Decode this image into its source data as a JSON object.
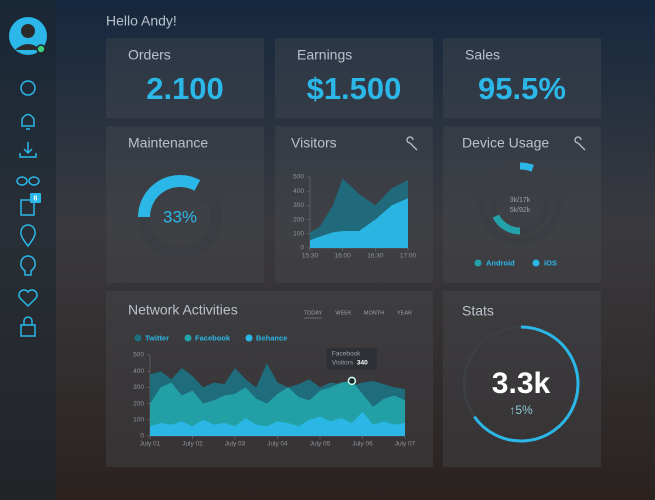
{
  "greeting": "Hello Andy!",
  "sidebar": {
    "badge": "8"
  },
  "cards": [
    {
      "title": "Orders",
      "value": "2.100"
    },
    {
      "title": "Earnings",
      "value": "$1.500"
    },
    {
      "title": "Sales",
      "value": "95.5%"
    }
  ],
  "stats": {
    "title": "Stats",
    "value": "3.3k",
    "change": "↑5%"
  },
  "chart_data": [
    {
      "type": "gauge",
      "title": "Maintenance",
      "value": 33,
      "value_label": "33%",
      "ylim": [
        0,
        100
      ],
      "color": "#2bb8e8"
    },
    {
      "type": "area",
      "title": "Visitors",
      "x": [
        15.5,
        15.65,
        15.85,
        16.0,
        16.25,
        16.5,
        16.75,
        17.0
      ],
      "series": [
        {
          "name": "Visitors",
          "color": "#1f6d80",
          "values": [
            110,
            150,
            300,
            490,
            380,
            300,
            420,
            480
          ]
        },
        {
          "name": "Visitors",
          "color": "#2bb8e8",
          "values": [
            55,
            80,
            110,
            120,
            120,
            200,
            300,
            350
          ]
        }
      ],
      "xlim": [
        15.5,
        17.0
      ],
      "xticks": [
        {
          "value": 15.5,
          "label": "15:30"
        },
        {
          "value": 16.0,
          "label": "16:00"
        },
        {
          "value": 16.5,
          "label": "16:30"
        },
        {
          "value": 17.0,
          "label": "17:00"
        }
      ],
      "ylim": [
        0,
        500
      ],
      "yticks": [
        0,
        100,
        200,
        300,
        400,
        500
      ]
    },
    {
      "type": "donut",
      "title": "Device Usage",
      "series": [
        {
          "name": "Android",
          "color": "#23a3a9",
          "value": 3,
          "total": 17,
          "value_label": "3k/17k"
        },
        {
          "name": "iOS",
          "color": "#2bb8e8",
          "value": 5,
          "total": 92,
          "value_label": "5k/92k"
        }
      ]
    },
    {
      "type": "area",
      "title": "Network Activities",
      "legend": "top-left",
      "tabs": [
        "TODAY",
        "WEEK",
        "MONTH",
        "YEAR"
      ],
      "x": [
        1,
        1.25,
        1.5,
        1.75,
        2,
        2.25,
        2.5,
        2.75,
        3,
        3.25,
        3.5,
        3.75,
        4,
        4.25,
        4.5,
        4.75,
        5,
        5.25,
        5.5,
        5.75,
        6,
        6.25,
        6.5,
        6.75,
        7
      ],
      "series": [
        {
          "name": "Twitter",
          "color": "#1d6f80",
          "values": [
            380,
            400,
            350,
            420,
            370,
            300,
            330,
            320,
            420,
            350,
            300,
            450,
            330,
            300,
            320,
            350,
            300,
            330,
            320,
            310,
            330,
            340,
            320,
            300,
            290
          ]
        },
        {
          "name": "Facebook",
          "color": "#23a3a9",
          "values": [
            200,
            300,
            330,
            250,
            280,
            200,
            220,
            250,
            260,
            300,
            230,
            200,
            260,
            300,
            240,
            220,
            280,
            300,
            330,
            340,
            260,
            180,
            230,
            250,
            220
          ]
        },
        {
          "name": "Behance",
          "color": "#2bb8e8",
          "values": [
            60,
            80,
            70,
            90,
            60,
            100,
            70,
            80,
            60,
            110,
            70,
            60,
            90,
            80,
            60,
            100,
            120,
            90,
            110,
            80,
            150,
            70,
            90,
            70,
            80
          ]
        }
      ],
      "annotation": {
        "series": 1,
        "index": 19,
        "title": "Facebook",
        "label": "Visitors",
        "value": 340
      },
      "xlim": [
        1,
        7
      ],
      "xticks": [
        {
          "value": 1,
          "label": "July 01"
        },
        {
          "value": 2,
          "label": "July 02"
        },
        {
          "value": 3,
          "label": "July 03"
        },
        {
          "value": 4,
          "label": "July 04"
        },
        {
          "value": 5,
          "label": "July 05"
        },
        {
          "value": 6,
          "label": "July 06"
        },
        {
          "value": 7,
          "label": "July 07"
        }
      ],
      "ylim": [
        0,
        500
      ],
      "yticks": [
        0,
        100,
        200,
        300,
        400,
        500
      ]
    }
  ]
}
